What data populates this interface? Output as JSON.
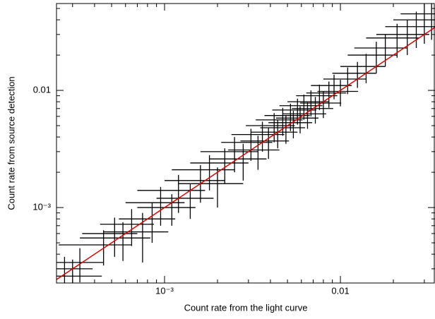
{
  "chart_data": {
    "type": "scatter",
    "xlabel": "Count rate from the light curve",
    "ylabel": "Count rate from source detection",
    "xscale": "log",
    "yscale": "log",
    "xlim": [
      0.000243,
      0.0345
    ],
    "ylim": [
      0.000227,
      0.0551
    ],
    "xticks": [
      {
        "value": 0.001,
        "label": "10⁻³"
      },
      0.01
    ],
    "yticks": [
      {
        "value": 0.001,
        "label": "10⁻³"
      },
      0.01
    ],
    "xminorticks": [
      0.0003,
      0.0004,
      0.0005,
      0.0006,
      0.0007,
      0.0008,
      0.0009,
      0.002,
      0.003,
      0.004,
      0.005,
      0.006,
      0.007,
      0.008,
      0.009,
      0.02,
      0.03
    ],
    "yminorticks": [
      0.0003,
      0.0004,
      0.0005,
      0.0006,
      0.0007,
      0.0008,
      0.0009,
      0.002,
      0.003,
      0.004,
      0.005,
      0.006,
      0.007,
      0.008,
      0.009,
      0.02,
      0.03,
      0.04,
      0.05
    ],
    "series": [
      {
        "color": "#000000",
        "x": [
          0.00027,
          0.0003,
          0.00033,
          0.00045,
          0.00052,
          0.00058,
          0.00065,
          0.00075,
          0.00085,
          0.00095,
          0.0011,
          0.0012,
          0.0014,
          0.0016,
          0.0018,
          0.002,
          0.0022,
          0.0025,
          0.0028,
          0.0031,
          0.0034,
          0.0036,
          0.0039,
          0.0042,
          0.0044,
          0.0047,
          0.0049,
          0.0052,
          0.0054,
          0.0057,
          0.0059,
          0.0062,
          0.0065,
          0.0068,
          0.0072,
          0.0076,
          0.008,
          0.0086,
          0.0092,
          0.01,
          0.011,
          0.0125,
          0.014,
          0.016,
          0.018,
          0.021,
          0.024,
          0.027,
          0.03,
          0.033
        ],
        "y": [
          0.0003,
          0.00026,
          0.00034,
          0.00048,
          0.0006,
          0.00055,
          0.00072,
          0.00062,
          0.0008,
          0.0011,
          0.001,
          0.0014,
          0.0012,
          0.0017,
          0.0021,
          0.0016,
          0.0024,
          0.003,
          0.0026,
          0.0036,
          0.0031,
          0.0042,
          0.0037,
          0.005,
          0.0044,
          0.0056,
          0.0048,
          0.0061,
          0.0053,
          0.0068,
          0.0058,
          0.0074,
          0.0063,
          0.008,
          0.007,
          0.009,
          0.0078,
          0.0095,
          0.011,
          0.0098,
          0.0125,
          0.014,
          0.016,
          0.02,
          0.023,
          0.028,
          0.03,
          0.035,
          0.04,
          0.045
        ],
        "xerr": [
          0.00012,
          0.00014,
          0.00012,
          0.0002,
          0.00018,
          0.00025,
          0.00022,
          0.0003,
          0.0003,
          0.00035,
          0.0004,
          0.0005,
          0.0005,
          0.0006,
          0.0007,
          0.0008,
          0.0008,
          0.0009,
          0.001,
          0.001,
          0.0011,
          0.0012,
          0.0012,
          0.0013,
          0.0013,
          0.0014,
          0.0014,
          0.0015,
          0.0015,
          0.0016,
          0.0016,
          0.0017,
          0.0018,
          0.0018,
          0.0019,
          0.002,
          0.0021,
          0.0022,
          0.0024,
          0.0026,
          0.003,
          0.0035,
          0.004,
          0.005,
          0.006,
          0.007,
          0.008,
          0.009,
          0.01,
          0.011
        ],
        "yerr": [
          8e-05,
          0.0001,
          0.00011,
          0.00016,
          0.00022,
          0.0002,
          0.00025,
          0.00028,
          0.0003,
          0.0004,
          0.0003,
          0.0005,
          0.0004,
          0.0006,
          0.0007,
          0.0006,
          0.0008,
          0.001,
          0.0009,
          0.0011,
          0.001,
          0.0012,
          0.0011,
          0.0014,
          0.0012,
          0.0015,
          0.0013,
          0.0016,
          0.0014,
          0.0017,
          0.0015,
          0.0018,
          0.0016,
          0.002,
          0.0018,
          0.0022,
          0.002,
          0.0024,
          0.0026,
          0.0025,
          0.0032,
          0.0035,
          0.0045,
          0.006,
          0.007,
          0.009,
          0.01,
          0.012,
          0.015,
          0.018
        ]
      }
    ],
    "line": {
      "color": "#e00000",
      "x": [
        0.000243,
        0.0345
      ],
      "y": [
        0.000243,
        0.0345
      ]
    }
  }
}
